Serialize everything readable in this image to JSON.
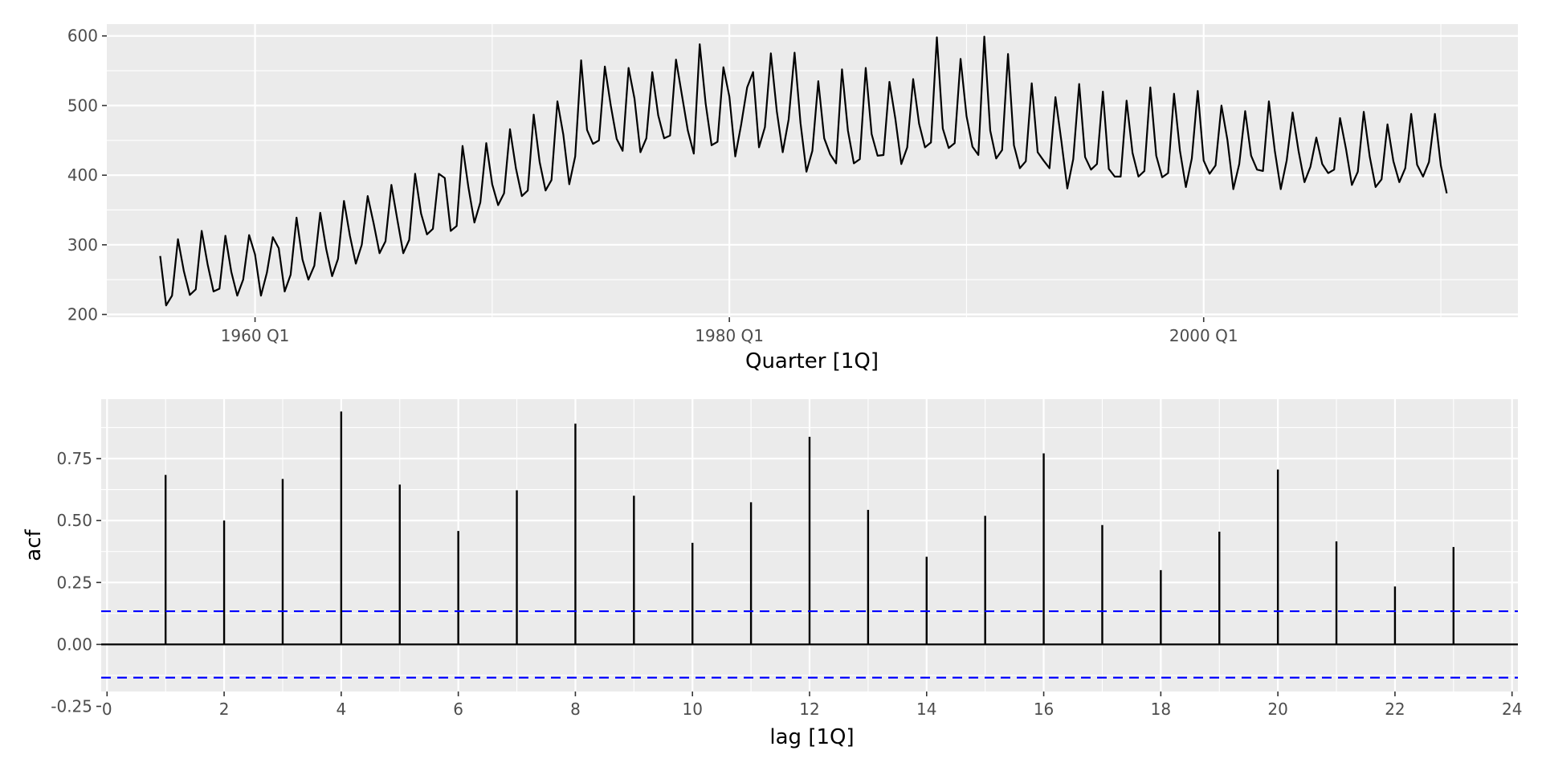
{
  "colors": {
    "panel_background": "#ebebeb",
    "grid": "#ffffff",
    "series": "#000000",
    "confidence_bound": "#0000ff"
  },
  "chart_data": [
    {
      "type": "line",
      "title": "",
      "xlabel": "Quarter [1Q]",
      "ylabel": "",
      "x_start": "1956 Q1",
      "x_frequency": "quarterly",
      "x_ticks": [
        "1960 Q1",
        "1980 Q1",
        "2000 Q1"
      ],
      "xlim": [
        "1953 Q4",
        "2013 Q2"
      ],
      "y_ticks": [
        "200",
        "300",
        "400",
        "500",
        "600"
      ],
      "ylim": [
        196,
        617
      ],
      "grid": true,
      "series": [
        {
          "values": [
            284,
            213,
            227,
            308,
            262,
            228,
            236,
            320,
            272,
            233,
            237,
            313,
            261,
            227,
            250,
            314,
            286,
            227,
            260,
            311,
            295,
            233,
            257,
            339,
            279,
            250,
            270,
            346,
            294,
            255,
            280,
            363,
            313,
            273,
            300,
            370,
            331,
            288,
            305,
            386,
            336,
            288,
            307,
            402,
            345,
            315,
            323,
            402,
            396,
            320,
            327,
            442,
            382,
            332,
            361,
            446,
            387,
            357,
            374,
            466,
            410,
            370,
            378,
            487,
            419,
            378,
            393,
            506,
            458,
            387,
            427,
            565,
            465,
            445,
            450,
            556,
            500,
            452,
            435,
            554,
            510,
            433,
            453,
            548,
            486,
            453,
            457,
            566,
            515,
            464,
            431,
            588,
            503,
            443,
            448,
            555,
            513,
            427,
            473,
            526,
            548,
            440,
            469,
            575,
            492,
            433,
            480,
            576,
            475,
            405,
            435,
            535,
            453,
            430,
            417,
            552,
            464,
            417,
            423,
            554,
            459,
            428,
            429,
            534,
            481,
            416,
            440,
            538,
            474,
            440,
            447,
            598,
            467,
            439,
            446,
            567,
            485,
            441,
            429,
            599,
            464,
            424,
            436,
            574,
            443,
            410,
            420,
            532,
            433,
            421,
            410,
            512,
            449,
            381,
            423,
            531,
            426,
            408,
            416,
            520,
            409,
            398,
            398,
            507,
            432,
            398,
            406,
            526,
            428,
            397,
            403,
            517,
            435,
            383,
            424,
            521,
            421,
            402,
            414,
            500,
            451,
            380,
            416,
            492,
            428,
            408,
            406,
            506,
            435,
            380,
            421,
            490,
            435,
            390,
            412,
            454,
            416,
            403,
            408,
            482,
            438,
            386,
            405,
            491,
            427,
            383,
            394,
            473,
            420,
            390,
            410,
            488,
            415,
            398,
            419,
            488,
            414,
            374
          ]
        }
      ]
    },
    {
      "type": "bar",
      "title": "",
      "xlabel": "lag [1Q]",
      "ylabel": "acf",
      "x_ticks": [
        "0",
        "2",
        "4",
        "6",
        "8",
        "10",
        "12",
        "14",
        "16",
        "18",
        "20",
        "22",
        "24"
      ],
      "xlim": [
        -0.1,
        24.1
      ],
      "y_ticks": [
        "-0.25",
        "0.00",
        "0.25",
        "0.50",
        "0.75"
      ],
      "y_tick_values": [
        -0.25,
        0.0,
        0.25,
        0.5,
        0.75
      ],
      "ylim": [
        -0.19,
        0.99
      ],
      "grid": true,
      "confidence_bound": 0.134,
      "lags": [
        1,
        2,
        3,
        4,
        5,
        6,
        7,
        8,
        9,
        10,
        11,
        12,
        13,
        14,
        15,
        16,
        17,
        18,
        19,
        20,
        21,
        22,
        23
      ],
      "values": [
        0.684,
        0.5,
        0.668,
        0.94,
        0.645,
        0.458,
        0.622,
        0.891,
        0.6,
        0.41,
        0.574,
        0.838,
        0.543,
        0.354,
        0.519,
        0.771,
        0.482,
        0.3,
        0.455,
        0.706,
        0.416,
        0.234,
        0.393
      ]
    }
  ]
}
